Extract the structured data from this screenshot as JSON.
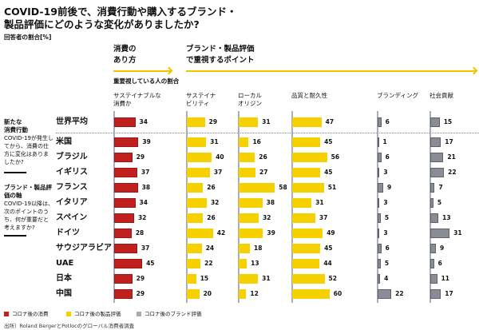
{
  "title": "COVID-19前後で、消費行動や購入するブランド・製品評価にどのような変化がありましたか?",
  "unit_label": "回答者の割合[%]",
  "section1": "消費の\nあり方",
  "section2": "ブランド・製品評価\nで重視するポイント",
  "subtitle": "重要視している人の割合",
  "side": {
    "block1_title": "新たな\n消費行動",
    "block1_text": "COVID-19が発生してから、消費の仕方に変化はありましたか?",
    "block2_title": "ブランド・製品評価の軸",
    "block2_text": "COVID-19以降は、次のポイントのうち、何が重要だと考えますか?"
  },
  "legend": [
    {
      "label": "コロナ後の消費",
      "color": "#c0201e"
    },
    {
      "label": "コロナ後の製品評価",
      "color": "#f7d000"
    },
    {
      "label": "コロナ後のブランド評価",
      "color": "#8a8d96"
    }
  ],
  "source": "出所）Roland BergerとPotlocのグローバル消費者調査",
  "chart_data": {
    "type": "bar",
    "orientation": "horizontal",
    "unit": "%",
    "categories": [
      "世界平均",
      "米国",
      "ブラジル",
      "イギリス",
      "フランス",
      "イタリア",
      "スペイン",
      "ドイツ",
      "サウジアラビア",
      "UAE",
      "日本",
      "中国"
    ],
    "series": [
      {
        "name": "サステイナブルな消費か",
        "group": "コロナ後の消費",
        "color": "#c0201e",
        "values": [
          34,
          39,
          29,
          37,
          38,
          34,
          32,
          28,
          37,
          45,
          29,
          29
        ]
      },
      {
        "name": "サステイナビリティ",
        "group": "コロナ後の製品評価",
        "color": "#f7d000",
        "values": [
          29,
          31,
          40,
          37,
          26,
          32,
          26,
          42,
          24,
          22,
          15,
          20
        ]
      },
      {
        "name": "ローカルオリジン",
        "group": "コロナ後の製品評価",
        "color": "#f7d000",
        "values": [
          31,
          16,
          26,
          27,
          58,
          38,
          32,
          39,
          18,
          13,
          31,
          12
        ]
      },
      {
        "name": "品質と耐久性",
        "group": "コロナ後の製品評価",
        "color": "#f7d000",
        "values": [
          47,
          45,
          56,
          45,
          51,
          31,
          37,
          49,
          45,
          44,
          52,
          60
        ]
      },
      {
        "name": "ブランディング",
        "group": "コロナ後のブランド評価",
        "color": "#8a8d96",
        "values": [
          6,
          1,
          6,
          3,
          9,
          3,
          5,
          3,
          6,
          5,
          4,
          22
        ]
      },
      {
        "name": "社会貢献",
        "group": "コロナ後のブランド評価",
        "color": "#8a8d96",
        "values": [
          15,
          17,
          21,
          22,
          7,
          5,
          13,
          31,
          9,
          6,
          11,
          17
        ]
      }
    ]
  }
}
